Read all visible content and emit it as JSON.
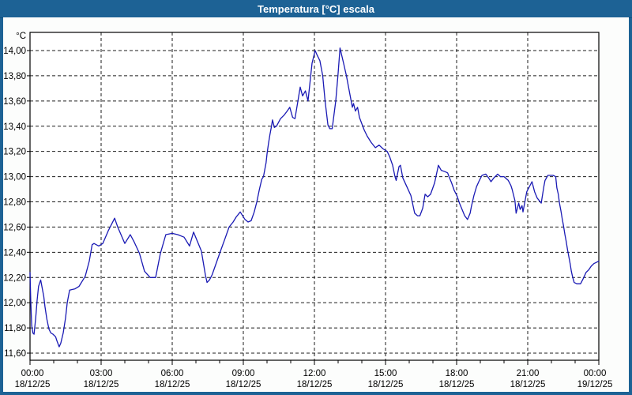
{
  "window": {
    "title": "Temperatura [°C] escala"
  },
  "colors": {
    "frame": "#1d6295",
    "title_text": "#ffffff",
    "content_bg": "#fcfdfc",
    "plot_bg": "#ffffff",
    "grid": "#1c1c1c",
    "axis": "#000000",
    "line": "#1a1ab4",
    "label": "#000000"
  },
  "chart_data": {
    "type": "line",
    "title": "Temperatura [°C] escala",
    "y_unit_label": "°C",
    "ylim": [
      11.6,
      14.0
    ],
    "y_tick_step": 0.2,
    "grid": true,
    "legend": "none",
    "y_ticks": [
      {
        "value": 14.0,
        "label": "14,00"
      },
      {
        "value": 13.8,
        "label": "13,80"
      },
      {
        "value": 13.6,
        "label": "13,60"
      },
      {
        "value": 13.4,
        "label": "13,40"
      },
      {
        "value": 13.2,
        "label": "13,20"
      },
      {
        "value": 13.0,
        "label": "13,00"
      },
      {
        "value": 12.8,
        "label": "12,80"
      },
      {
        "value": 12.6,
        "label": "12,60"
      },
      {
        "value": 12.4,
        "label": "12,40"
      },
      {
        "value": 12.2,
        "label": "12,20"
      },
      {
        "value": 12.0,
        "label": "12,00"
      },
      {
        "value": 11.8,
        "label": "11,80"
      },
      {
        "value": 11.6,
        "label": "11,60"
      }
    ],
    "x_hours_range": [
      0,
      24
    ],
    "x_minor_tick_hours": 1,
    "x_major_ticks": [
      {
        "hour": 0,
        "time": "00:00",
        "date": "18/12/25"
      },
      {
        "hour": 3,
        "time": "03:00",
        "date": "18/12/25"
      },
      {
        "hour": 6,
        "time": "06:00",
        "date": "18/12/25"
      },
      {
        "hour": 9,
        "time": "09:00",
        "date": "18/12/25"
      },
      {
        "hour": 12,
        "time": "12:00",
        "date": "18/12/25"
      },
      {
        "hour": 15,
        "time": "15:00",
        "date": "18/12/25"
      },
      {
        "hour": 18,
        "time": "18:00",
        "date": "18/12/25"
      },
      {
        "hour": 21,
        "time": "21:00",
        "date": "18/12/25"
      },
      {
        "hour": 24,
        "time": "00:00",
        "date": "19/12/25"
      }
    ],
    "series": [
      {
        "name": "Temperatura",
        "color": "#1a1ab4",
        "points": [
          [
            0,
            12.24
          ],
          [
            0.03,
            12.02
          ],
          [
            0.07,
            11.82
          ],
          [
            0.12,
            11.76
          ],
          [
            0.17,
            11.75
          ],
          [
            0.24,
            11.88
          ],
          [
            0.3,
            12.02
          ],
          [
            0.36,
            12.13
          ],
          [
            0.45,
            12.18
          ],
          [
            0.58,
            12.05
          ],
          [
            0.63,
            11.97
          ],
          [
            0.71,
            11.87
          ],
          [
            0.8,
            11.79
          ],
          [
            0.88,
            11.76
          ],
          [
            0.97,
            11.75
          ],
          [
            1.08,
            11.73
          ],
          [
            1.13,
            11.7
          ],
          [
            1.23,
            11.65
          ],
          [
            1.3,
            11.68
          ],
          [
            1.4,
            11.76
          ],
          [
            1.5,
            11.88
          ],
          [
            1.57,
            12.0
          ],
          [
            1.67,
            12.1
          ],
          [
            1.9,
            12.11
          ],
          [
            2.07,
            12.13
          ],
          [
            2.33,
            12.21
          ],
          [
            2.5,
            12.33
          ],
          [
            2.62,
            12.46
          ],
          [
            2.7,
            12.47
          ],
          [
            2.9,
            12.45
          ],
          [
            3.07,
            12.47
          ],
          [
            3.3,
            12.57
          ],
          [
            3.57,
            12.67
          ],
          [
            3.7,
            12.6
          ],
          [
            4.0,
            12.47
          ],
          [
            4.23,
            12.54
          ],
          [
            4.4,
            12.48
          ],
          [
            4.62,
            12.39
          ],
          [
            4.83,
            12.25
          ],
          [
            5.07,
            12.2
          ],
          [
            5.3,
            12.2
          ],
          [
            5.5,
            12.39
          ],
          [
            5.73,
            12.54
          ],
          [
            6.0,
            12.55
          ],
          [
            6.23,
            12.54
          ],
          [
            6.5,
            12.52
          ],
          [
            6.73,
            12.45
          ],
          [
            6.9,
            12.56
          ],
          [
            7.23,
            12.41
          ],
          [
            7.4,
            12.22
          ],
          [
            7.47,
            12.16
          ],
          [
            7.57,
            12.18
          ],
          [
            7.68,
            12.22
          ],
          [
            8.0,
            12.39
          ],
          [
            8.23,
            12.51
          ],
          [
            8.4,
            12.6
          ],
          [
            8.57,
            12.64
          ],
          [
            8.7,
            12.68
          ],
          [
            8.87,
            12.72
          ],
          [
            9.07,
            12.66
          ],
          [
            9.2,
            12.64
          ],
          [
            9.33,
            12.65
          ],
          [
            9.46,
            12.72
          ],
          [
            9.57,
            12.8
          ],
          [
            9.68,
            12.9
          ],
          [
            9.78,
            12.98
          ],
          [
            9.85,
            13.0
          ],
          [
            9.96,
            13.11
          ],
          [
            10.0,
            13.18
          ],
          [
            10.06,
            13.26
          ],
          [
            10.12,
            13.33
          ],
          [
            10.18,
            13.39
          ],
          [
            10.23,
            13.45
          ],
          [
            10.31,
            13.39
          ],
          [
            10.4,
            13.4
          ],
          [
            10.57,
            13.46
          ],
          [
            10.73,
            13.49
          ],
          [
            10.85,
            13.52
          ],
          [
            10.96,
            13.55
          ],
          [
            11.08,
            13.47
          ],
          [
            11.18,
            13.46
          ],
          [
            11.4,
            13.71
          ],
          [
            11.5,
            13.64
          ],
          [
            11.62,
            13.68
          ],
          [
            11.73,
            13.6
          ],
          [
            11.9,
            13.9
          ],
          [
            12.03,
            14.0
          ],
          [
            12.1,
            13.97
          ],
          [
            12.23,
            13.92
          ],
          [
            12.35,
            13.8
          ],
          [
            12.45,
            13.6
          ],
          [
            12.57,
            13.41
          ],
          [
            12.65,
            13.38
          ],
          [
            12.75,
            13.38
          ],
          [
            12.9,
            13.6
          ],
          [
            13.0,
            13.82
          ],
          [
            13.08,
            14.02
          ],
          [
            13.23,
            13.9
          ],
          [
            13.35,
            13.8
          ],
          [
            13.5,
            13.65
          ],
          [
            13.6,
            13.55
          ],
          [
            13.65,
            13.58
          ],
          [
            13.73,
            13.52
          ],
          [
            13.82,
            13.55
          ],
          [
            13.9,
            13.47
          ],
          [
            14.0,
            13.42
          ],
          [
            14.1,
            13.37
          ],
          [
            14.23,
            13.32
          ],
          [
            14.4,
            13.27
          ],
          [
            14.57,
            13.23
          ],
          [
            14.73,
            13.25
          ],
          [
            14.9,
            13.22
          ],
          [
            15.07,
            13.2
          ],
          [
            15.17,
            13.16
          ],
          [
            15.3,
            13.09
          ],
          [
            15.4,
            13.0
          ],
          [
            15.45,
            12.97
          ],
          [
            15.57,
            13.08
          ],
          [
            15.63,
            13.09
          ],
          [
            15.73,
            12.99
          ],
          [
            15.9,
            12.92
          ],
          [
            16.07,
            12.85
          ],
          [
            16.23,
            12.71
          ],
          [
            16.35,
            12.69
          ],
          [
            16.45,
            12.69
          ],
          [
            16.57,
            12.75
          ],
          [
            16.67,
            12.86
          ],
          [
            16.78,
            12.84
          ],
          [
            16.9,
            12.86
          ],
          [
            17.07,
            12.95
          ],
          [
            17.23,
            13.09
          ],
          [
            17.35,
            13.05
          ],
          [
            17.5,
            13.04
          ],
          [
            17.62,
            13.03
          ],
          [
            17.68,
            13.0
          ],
          [
            17.79,
            12.95
          ],
          [
            17.9,
            12.89
          ],
          [
            18.01,
            12.85
          ],
          [
            18.12,
            12.79
          ],
          [
            18.23,
            12.74
          ],
          [
            18.34,
            12.69
          ],
          [
            18.46,
            12.66
          ],
          [
            18.57,
            12.71
          ],
          [
            18.62,
            12.76
          ],
          [
            18.73,
            12.85
          ],
          [
            18.84,
            12.92
          ],
          [
            18.96,
            12.97
          ],
          [
            19.07,
            13.01
          ],
          [
            19.23,
            13.02
          ],
          [
            19.35,
            12.99
          ],
          [
            19.45,
            12.96
          ],
          [
            19.57,
            12.99
          ],
          [
            19.68,
            13.01
          ],
          [
            19.73,
            13.02
          ],
          [
            19.85,
            13.0
          ],
          [
            20.0,
            13.0
          ],
          [
            20.18,
            12.97
          ],
          [
            20.29,
            12.93
          ],
          [
            20.34,
            12.9
          ],
          [
            20.46,
            12.81
          ],
          [
            20.51,
            12.71
          ],
          [
            20.62,
            12.79
          ],
          [
            20.68,
            12.74
          ],
          [
            20.76,
            12.77
          ],
          [
            20.8,
            12.72
          ],
          [
            20.9,
            12.82
          ],
          [
            20.96,
            12.88
          ],
          [
            21.18,
            12.96
          ],
          [
            21.29,
            12.88
          ],
          [
            21.4,
            12.83
          ],
          [
            21.57,
            12.79
          ],
          [
            21.68,
            12.92
          ],
          [
            21.73,
            12.97
          ],
          [
            21.85,
            13.01
          ],
          [
            22.07,
            13.01
          ],
          [
            22.18,
            13.0
          ],
          [
            22.23,
            12.91
          ],
          [
            22.29,
            12.86
          ],
          [
            22.34,
            12.79
          ],
          [
            22.4,
            12.73
          ],
          [
            22.46,
            12.66
          ],
          [
            22.51,
            12.61
          ],
          [
            22.57,
            12.54
          ],
          [
            22.62,
            12.49
          ],
          [
            22.68,
            12.42
          ],
          [
            22.73,
            12.37
          ],
          [
            22.79,
            12.31
          ],
          [
            22.84,
            12.25
          ],
          [
            22.9,
            12.2
          ],
          [
            22.96,
            12.16
          ],
          [
            23.07,
            12.15
          ],
          [
            23.23,
            12.15
          ],
          [
            23.34,
            12.19
          ],
          [
            23.46,
            12.24
          ],
          [
            23.57,
            12.26
          ],
          [
            23.68,
            12.29
          ],
          [
            23.79,
            12.31
          ],
          [
            23.9,
            12.32
          ],
          [
            24.0,
            12.33
          ]
        ]
      }
    ]
  }
}
